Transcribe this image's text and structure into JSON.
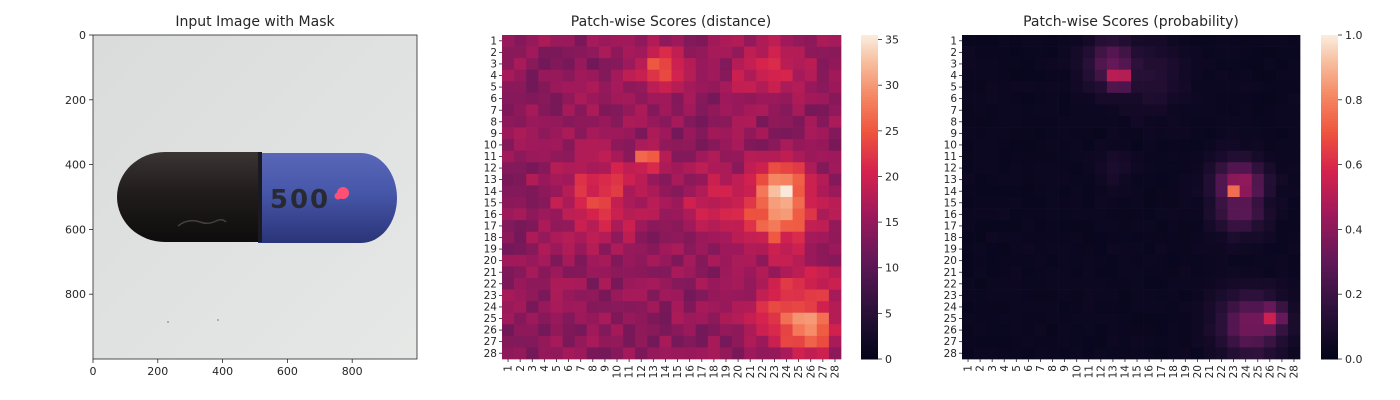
{
  "chart_data": [
    {
      "type": "image",
      "title": "Input Image with Mask",
      "x_ticks": [
        0,
        200,
        400,
        600,
        800
      ],
      "y_ticks": [
        0,
        200,
        400,
        600,
        800
      ],
      "xlim": [
        0,
        1000
      ],
      "ylim": [
        1000,
        0
      ],
      "image_text": "500",
      "mask_color": "#ff4f74"
    },
    {
      "type": "heatmap",
      "title": "Patch-wise Scores (distance)",
      "rows": 28,
      "cols": 28,
      "row_labels": [
        "1",
        "2",
        "3",
        "4",
        "5",
        "6",
        "7",
        "8",
        "9",
        "10",
        "11",
        "12",
        "13",
        "14",
        "15",
        "16",
        "17",
        "18",
        "19",
        "20",
        "21",
        "22",
        "23",
        "24",
        "25",
        "26",
        "27",
        "28"
      ],
      "col_labels": [
        "1",
        "2",
        "3",
        "4",
        "5",
        "6",
        "7",
        "8",
        "9",
        "10",
        "11",
        "12",
        "13",
        "14",
        "15",
        "16",
        "17",
        "18",
        "19",
        "20",
        "21",
        "22",
        "23",
        "24",
        "25",
        "26",
        "27",
        "28"
      ],
      "colormap": "rocket",
      "vmin": 0,
      "vmax": 35.5,
      "colorbar_ticks": [
        0,
        5,
        10,
        15,
        20,
        25,
        30,
        35
      ],
      "baseline": 14.5,
      "hotspots": [
        {
          "row": 14,
          "col": 23.5,
          "value": 35,
          "radius": 1.6
        },
        {
          "row": 15.5,
          "col": 23.5,
          "value": 30,
          "radius": 2.2
        },
        {
          "row": 17.5,
          "col": 23,
          "value": 24,
          "radius": 1.6
        },
        {
          "row": 25.5,
          "col": 25.5,
          "value": 30,
          "radius": 1.8
        },
        {
          "row": 24.5,
          "col": 25,
          "value": 25,
          "radius": 2.5
        },
        {
          "row": 3.5,
          "col": 13.5,
          "value": 25,
          "radius": 1.3
        },
        {
          "row": 11,
          "col": 12.5,
          "value": 26,
          "radius": 0.8
        },
        {
          "row": 14.5,
          "col": 8.5,
          "value": 22,
          "radius": 2.5
        },
        {
          "row": 3.5,
          "col": 22.5,
          "value": 21,
          "radius": 2.0
        },
        {
          "row": 15,
          "col": 18,
          "value": 20,
          "radius": 2.0
        }
      ]
    },
    {
      "type": "heatmap",
      "title": "Patch-wise Scores (probability)",
      "rows": 28,
      "cols": 28,
      "row_labels": [
        "1",
        "2",
        "3",
        "4",
        "5",
        "6",
        "7",
        "8",
        "9",
        "10",
        "11",
        "12",
        "13",
        "14",
        "15",
        "16",
        "17",
        "18",
        "19",
        "20",
        "21",
        "22",
        "23",
        "24",
        "25",
        "26",
        "27",
        "28"
      ],
      "col_labels": [
        "1",
        "2",
        "3",
        "4",
        "5",
        "6",
        "7",
        "8",
        "9",
        "10",
        "11",
        "12",
        "13",
        "14",
        "15",
        "16",
        "17",
        "18",
        "19",
        "20",
        "21",
        "22",
        "23",
        "24",
        "25",
        "26",
        "27",
        "28"
      ],
      "colormap": "rocket",
      "vmin": 0,
      "vmax": 1.0,
      "colorbar_ticks": [
        0.0,
        0.2,
        0.4,
        0.6,
        0.8,
        1.0
      ],
      "colorbar_tick_labels": [
        "0.0",
        "0.2",
        "0.4",
        "0.6",
        "0.8",
        "1.0"
      ],
      "baseline": 0.02,
      "hotspots": [
        {
          "row": 14,
          "col": 23,
          "value": 0.75,
          "radius": 0.6
        },
        {
          "row": 13.5,
          "col": 23.5,
          "value": 0.45,
          "radius": 1.4
        },
        {
          "row": 15.5,
          "col": 23.5,
          "value": 0.3,
          "radius": 1.4
        },
        {
          "row": 25,
          "col": 26,
          "value": 0.55,
          "radius": 0.9
        },
        {
          "row": 25.5,
          "col": 24.5,
          "value": 0.35,
          "radius": 1.8
        },
        {
          "row": 4,
          "col": 13.5,
          "value": 0.6,
          "radius": 0.8
        },
        {
          "row": 3,
          "col": 13,
          "value": 0.3,
          "radius": 1.5
        },
        {
          "row": 4,
          "col": 16,
          "value": 0.12,
          "radius": 2.0
        },
        {
          "row": 12,
          "col": 13,
          "value": 0.08,
          "radius": 1.0
        }
      ]
    }
  ]
}
